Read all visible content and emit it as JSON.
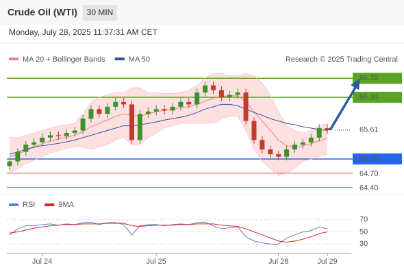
{
  "header": {
    "title": "Crude Oil (WTI)",
    "interval": "30 MIN",
    "timestamp": "Monday, July 28, 2025 11:37:31 AM CET"
  },
  "chart_data": [
    {
      "type": "candlestick",
      "legend": [
        {
          "name": "MA 20 + Bollinger Bands",
          "color": "#f08080"
        },
        {
          "name": "MA 50",
          "color": "#2f5597"
        }
      ],
      "credit": "Research © 2025 Trading Central",
      "categories": [
        null,
        null,
        null,
        null,
        "Jul 24",
        null,
        null,
        null,
        null,
        null,
        null,
        null,
        null,
        null,
        null,
        null,
        null,
        null,
        "Jul 25",
        null,
        null,
        null,
        null,
        null,
        null,
        null,
        null,
        null,
        null,
        null,
        null,
        null,
        null,
        "Jul 28",
        null,
        null,
        null,
        null,
        null,
        "Jul 29"
      ],
      "open": [
        64.85,
        64.95,
        65.15,
        65.3,
        65.35,
        65.45,
        65.5,
        65.48,
        65.55,
        65.6,
        65.85,
        66.05,
        65.95,
        66.1,
        66.2,
        66.15,
        65.4,
        65.95,
        66.0,
        66.05,
        66.02,
        66.1,
        66.2,
        66.15,
        66.4,
        66.55,
        66.45,
        66.3,
        66.35,
        66.4,
        65.8,
        65.4,
        65.2,
        65.1,
        65.05,
        65.2,
        65.3,
        65.35,
        65.45,
        65.65
      ],
      "high": [
        65.03,
        65.23,
        65.38,
        65.43,
        65.53,
        65.58,
        65.58,
        65.63,
        65.68,
        65.93,
        66.13,
        66.13,
        66.18,
        66.28,
        66.28,
        66.23,
        66.03,
        66.08,
        66.13,
        66.13,
        66.18,
        66.28,
        66.28,
        66.48,
        66.63,
        66.63,
        66.53,
        66.43,
        66.48,
        66.48,
        65.88,
        65.48,
        65.28,
        65.18,
        65.28,
        65.38,
        65.43,
        65.53,
        65.73,
        65.73
      ],
      "low": [
        64.77,
        64.87,
        65.07,
        65.22,
        65.27,
        65.37,
        65.4,
        65.4,
        65.47,
        65.52,
        65.77,
        65.87,
        65.87,
        66.02,
        66.07,
        65.32,
        65.32,
        65.87,
        65.92,
        65.94,
        65.94,
        66.02,
        66.07,
        66.07,
        66.32,
        66.37,
        66.22,
        66.22,
        66.27,
        65.72,
        65.32,
        65.12,
        65.02,
        64.97,
        64.97,
        65.12,
        65.22,
        65.27,
        65.37,
        65.53
      ],
      "close": [
        64.95,
        65.15,
        65.3,
        65.35,
        65.45,
        65.5,
        65.48,
        65.55,
        65.6,
        65.85,
        66.05,
        65.95,
        66.1,
        66.2,
        66.15,
        65.4,
        65.95,
        66.0,
        66.05,
        66.02,
        66.1,
        66.2,
        66.15,
        66.4,
        66.55,
        66.45,
        66.3,
        66.35,
        66.4,
        65.8,
        65.4,
        65.2,
        65.1,
        65.05,
        65.2,
        65.3,
        65.35,
        65.45,
        65.65,
        65.61
      ],
      "up_color": "#3f8f2f",
      "down_color": "#c23b2e",
      "ma20": [
        65.05,
        65.1,
        65.18,
        65.25,
        65.32,
        65.38,
        65.42,
        65.46,
        65.5,
        65.58,
        65.68,
        65.75,
        65.82,
        65.9,
        65.95,
        65.92,
        65.9,
        65.95,
        66.0,
        66.02,
        66.05,
        66.08,
        66.1,
        66.15,
        66.22,
        66.28,
        66.32,
        66.33,
        66.33,
        66.2,
        66.0,
        65.8,
        65.6,
        65.4,
        65.28,
        65.25,
        65.28,
        65.32,
        65.38,
        65.45
      ],
      "band_upper": [
        65.45,
        65.45,
        65.5,
        65.55,
        65.6,
        65.65,
        65.7,
        65.72,
        65.75,
        65.95,
        66.2,
        66.3,
        66.35,
        66.4,
        66.4,
        66.5,
        66.5,
        66.4,
        66.4,
        66.38,
        66.38,
        66.4,
        66.45,
        66.55,
        66.7,
        66.8,
        66.8,
        66.75,
        66.75,
        66.8,
        66.75,
        66.6,
        66.35,
        66.0,
        65.7,
        65.6,
        65.55,
        65.6,
        65.7,
        65.75
      ],
      "band_lower": [
        64.7,
        64.8,
        64.9,
        64.98,
        65.05,
        65.12,
        65.18,
        65.22,
        65.25,
        65.25,
        65.2,
        65.25,
        65.3,
        65.4,
        65.45,
        65.3,
        65.3,
        65.45,
        65.55,
        65.65,
        65.7,
        65.75,
        65.75,
        65.75,
        65.75,
        65.75,
        65.85,
        65.9,
        65.9,
        65.6,
        65.2,
        64.95,
        64.8,
        64.65,
        64.7,
        64.8,
        64.95,
        65.0,
        65.05,
        65.1
      ],
      "ma50": [
        65.1,
        65.15,
        65.2,
        65.25,
        65.28,
        65.3,
        65.33,
        65.36,
        65.4,
        65.45,
        65.5,
        65.55,
        65.6,
        65.65,
        65.7,
        65.7,
        65.72,
        65.75,
        65.78,
        65.82,
        65.85,
        65.88,
        65.92,
        65.98,
        66.05,
        66.1,
        66.15,
        66.15,
        66.12,
        66.05,
        65.98,
        65.92,
        65.85,
        65.8,
        65.75,
        65.72,
        65.68,
        65.65,
        65.62,
        65.6
      ],
      "ylim": [
        64.28,
        67.05
      ],
      "levels": [
        {
          "value": 66.7,
          "label": "66.70",
          "color": "#5aa324",
          "style": "box"
        },
        {
          "value": 66.3,
          "label": "66.30",
          "color": "#5aa324",
          "style": "box"
        },
        {
          "value": 65.61,
          "label": "65.61",
          "color": "#333333",
          "style": "dotted"
        },
        {
          "value": 65,
          "label": "65.00",
          "color": "#2266ee",
          "style": "box"
        },
        {
          "value": 64.7,
          "label": "64.70",
          "color": "#e05050",
          "style": "text"
        },
        {
          "value": 64.4,
          "label": "64.40",
          "color": "#e05050",
          "style": "text"
        }
      ]
    },
    {
      "type": "line",
      "series": [
        {
          "name": "RSI",
          "color": "#5b7fd6",
          "values": [
            45,
            55,
            60,
            60,
            62,
            63,
            61,
            63,
            62,
            65,
            66,
            62,
            65,
            65,
            62,
            45,
            60,
            62,
            62,
            60,
            62,
            63,
            62,
            65,
            66,
            60,
            55,
            57,
            58,
            42,
            35,
            32,
            30,
            30,
            40,
            45,
            50,
            52,
            58,
            55
          ]
        },
        {
          "name": "9MA",
          "color": "#dd2222",
          "values": [
            48,
            50,
            53,
            56,
            58,
            60,
            61,
            62,
            62,
            63,
            63,
            63,
            64,
            64,
            64,
            60,
            59,
            60,
            61,
            61,
            61,
            62,
            62,
            63,
            63,
            63,
            61,
            60,
            59,
            55,
            50,
            45,
            40,
            35,
            33,
            35,
            38,
            42,
            47,
            50
          ]
        }
      ],
      "ylim": [
        18,
        82
      ],
      "yticks": [
        70,
        50,
        30
      ]
    }
  ]
}
